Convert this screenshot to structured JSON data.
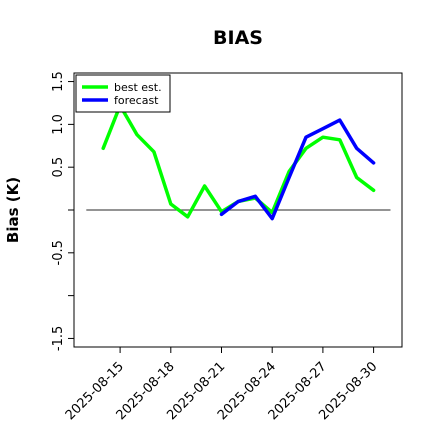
{
  "chart_data": {
    "type": "line",
    "title": "BIAS",
    "xlabel": "",
    "ylabel": "Bias (K)",
    "ylim": [
      -1.6,
      1.6
    ],
    "y_ticks": [
      1.5,
      1.0,
      0.5,
      0.0,
      -0.5,
      -1.0,
      -1.5
    ],
    "y_tick_labels": [
      "1.5",
      "1.0",
      "0.5",
      "",
      "-0.5",
      "",
      "-1.5"
    ],
    "x_tick_labels": [
      "2025-08-15",
      "2025-08-18",
      "2025-08-21",
      "2025-08-24",
      "2025-08-27",
      "2025-08-30"
    ],
    "highlight_tick": "2025-08-21",
    "highlight_color": "#2e8b2e",
    "reference_line": 0.0,
    "grid": false,
    "legend": "top-left",
    "x": [
      "2025-08-14",
      "2025-08-15",
      "2025-08-16",
      "2025-08-17",
      "2025-08-18",
      "2025-08-19",
      "2025-08-20",
      "2025-08-21",
      "2025-08-22",
      "2025-08-23",
      "2025-08-24",
      "2025-08-25",
      "2025-08-26",
      "2025-08-27",
      "2025-08-28",
      "2025-08-29",
      "2025-08-30"
    ],
    "series": [
      {
        "name": "best est.",
        "color": "#00ff00",
        "values": [
          0.72,
          1.22,
          0.88,
          0.68,
          0.07,
          -0.08,
          0.28,
          -0.02,
          0.1,
          0.14,
          -0.03,
          0.45,
          0.72,
          0.85,
          0.82,
          0.38,
          0.23
        ]
      },
      {
        "name": "forecast",
        "color": "#0000ff",
        "values": [
          null,
          null,
          null,
          null,
          null,
          null,
          null,
          -0.05,
          0.1,
          0.16,
          -0.1,
          0.38,
          0.85,
          0.95,
          1.05,
          0.72,
          0.55
        ]
      }
    ]
  }
}
